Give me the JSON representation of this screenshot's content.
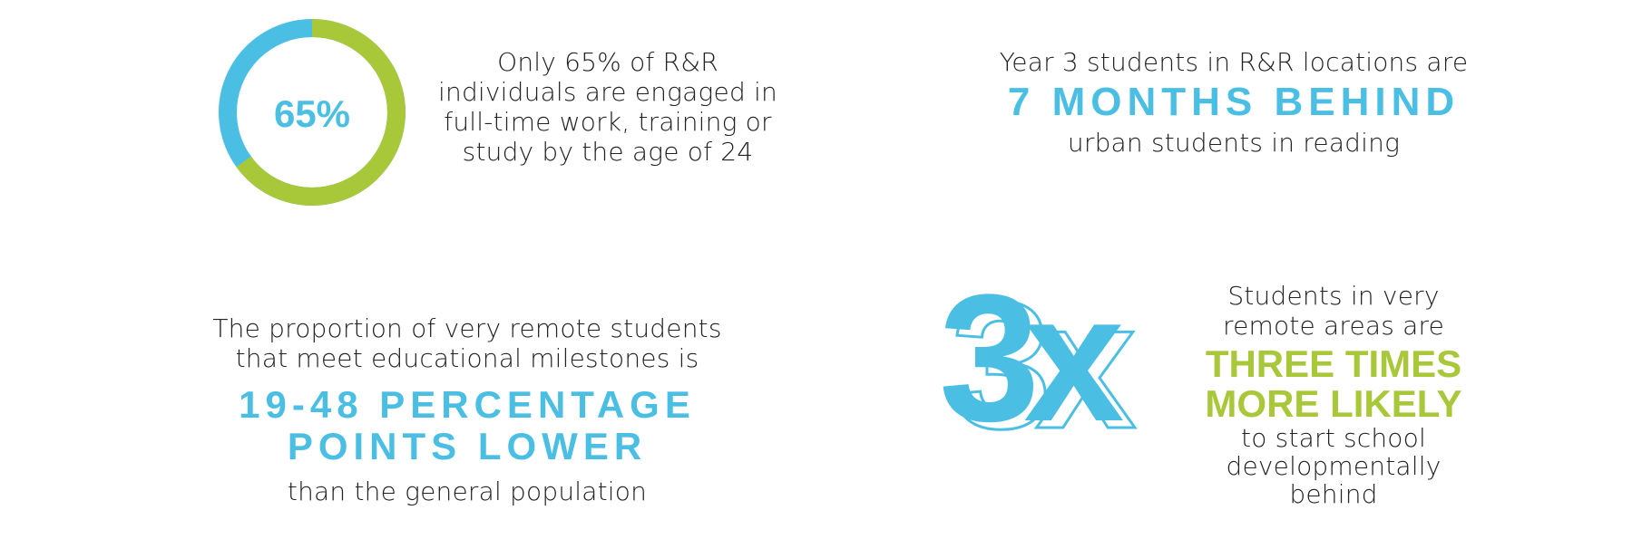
{
  "stat1": {
    "ring_value": "65%",
    "ring_fraction": 0.65,
    "ring_color": "#a8c83a",
    "ring_rest_color": "#4bbfe3",
    "lines": [
      "Only 65% of R&R",
      "individuals are engaged in",
      "full-time work, training or",
      "study by the age of 24"
    ]
  },
  "stat2": {
    "intro": "Year 3 students in R&R locations are",
    "highlight": "7 MONTHS BEHIND",
    "outro": "urban students in reading"
  },
  "stat3": {
    "intro_lines": [
      "The proportion of very remote students",
      "that meet educational milestones is"
    ],
    "highlight_lines": [
      "19-48 PERCENTAGE",
      "POINTS LOWER"
    ],
    "outro": "than the general population"
  },
  "stat4": {
    "big": "3x",
    "intro_lines": [
      "Students in very",
      "remote areas are"
    ],
    "highlight_lines": [
      "THREE TIMES",
      "MORE LIKELY"
    ],
    "outro_lines": [
      "to start school",
      "developmentally",
      "behind"
    ]
  },
  "colors": {
    "accent_blue": "#4bbfe3",
    "accent_green": "#a8c83a"
  }
}
